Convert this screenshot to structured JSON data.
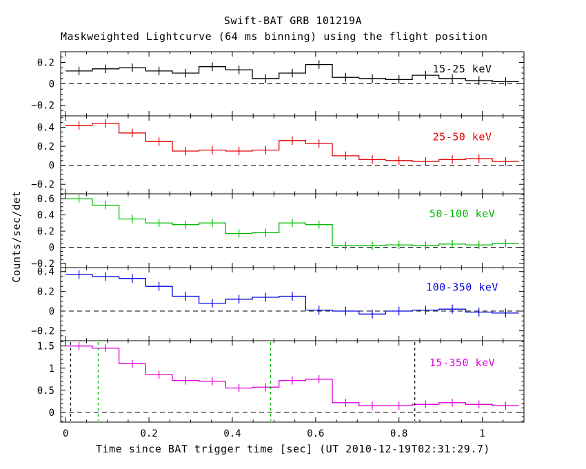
{
  "title": "Swift-BAT GRB 101219A",
  "subtitle": "Maskweighted Lightcurve (64 ms binning) using the flight position",
  "xlabel": "Time since BAT trigger time [sec] (UT 2010-12-19T02:31:29.7)",
  "ylabel": "Counts/sec/det",
  "chart_data": {
    "type": "line",
    "style": "step-histogram-with-errorbars",
    "bin_width_sec": 0.064,
    "xlim": [
      -0.012,
      1.1
    ],
    "x_major_ticks": [
      0,
      0.2,
      0.4,
      0.6,
      0.8,
      1.0
    ],
    "x_tick_labels": [
      "0",
      "0.2",
      "0.4",
      "0.6",
      "0.8",
      "1"
    ],
    "bin_edges": [
      0,
      0.064,
      0.128,
      0.192,
      0.256,
      0.32,
      0.384,
      0.448,
      0.512,
      0.576,
      0.64,
      0.704,
      0.768,
      0.832,
      0.896,
      0.96,
      1.024,
      1.088
    ],
    "panels": [
      {
        "label": "15-25 keV",
        "color": "#000000",
        "ylim": [
          -0.3,
          0.3
        ],
        "yticks": [
          -0.2,
          0,
          0.2
        ],
        "yminor": 0.05,
        "err": 0.04,
        "values": [
          0.12,
          0.14,
          0.15,
          0.12,
          0.1,
          0.16,
          0.13,
          0.05,
          0.1,
          0.18,
          0.06,
          0.05,
          0.04,
          0.08,
          0.05,
          0.03,
          0.02
        ]
      },
      {
        "label": "25-50 keV",
        "color": "#e00000",
        "ylim": [
          -0.3,
          0.52
        ],
        "yticks": [
          -0.2,
          0,
          0.2,
          0.4
        ],
        "yminor": 0.05,
        "err": 0.045,
        "values": [
          0.42,
          0.44,
          0.34,
          0.25,
          0.15,
          0.16,
          0.15,
          0.16,
          0.26,
          0.23,
          0.1,
          0.06,
          0.05,
          0.04,
          0.06,
          0.07,
          0.04
        ]
      },
      {
        "label": "50-100 keV",
        "color": "#00bb00",
        "ylim": [
          -0.25,
          0.66
        ],
        "yticks": [
          -0.2,
          0,
          0.2,
          0.4,
          0.6
        ],
        "yminor": 0.05,
        "err": 0.05,
        "values": [
          0.6,
          0.52,
          0.35,
          0.3,
          0.28,
          0.3,
          0.17,
          0.18,
          0.3,
          0.28,
          0.02,
          0.02,
          0.03,
          0.02,
          0.04,
          0.03,
          0.05
        ]
      },
      {
        "label": "100-350 keV",
        "color": "#0000dd",
        "ylim": [
          -0.3,
          0.44
        ],
        "yticks": [
          -0.2,
          0,
          0.2,
          0.4
        ],
        "yminor": 0.05,
        "err": 0.045,
        "values": [
          0.37,
          0.35,
          0.33,
          0.25,
          0.15,
          0.08,
          0.12,
          0.14,
          0.15,
          0.01,
          0.0,
          -0.03,
          0.0,
          0.01,
          0.02,
          -0.01,
          -0.02
        ]
      },
      {
        "label": "15-350 keV",
        "color": "#dd00dd",
        "ylim": [
          -0.22,
          1.62
        ],
        "yticks": [
          0,
          0.5,
          1,
          1.5
        ],
        "yminor": 0.1,
        "err": 0.09,
        "values": [
          1.5,
          1.45,
          1.1,
          0.85,
          0.72,
          0.7,
          0.55,
          0.57,
          0.72,
          0.75,
          0.22,
          0.15,
          0.15,
          0.18,
          0.22,
          0.18,
          0.15
        ]
      }
    ],
    "vlines": [
      {
        "x": 0.012,
        "color": "#000000",
        "style": "dashed",
        "panel": 4
      },
      {
        "x": 0.078,
        "color": "#00bb00",
        "style": "dashed",
        "panel": 4
      },
      {
        "x": 0.492,
        "color": "#00bb00",
        "style": "dashed",
        "panel": 4
      },
      {
        "x": 0.838,
        "color": "#000000",
        "style": "dashed",
        "panel": 4
      }
    ]
  }
}
